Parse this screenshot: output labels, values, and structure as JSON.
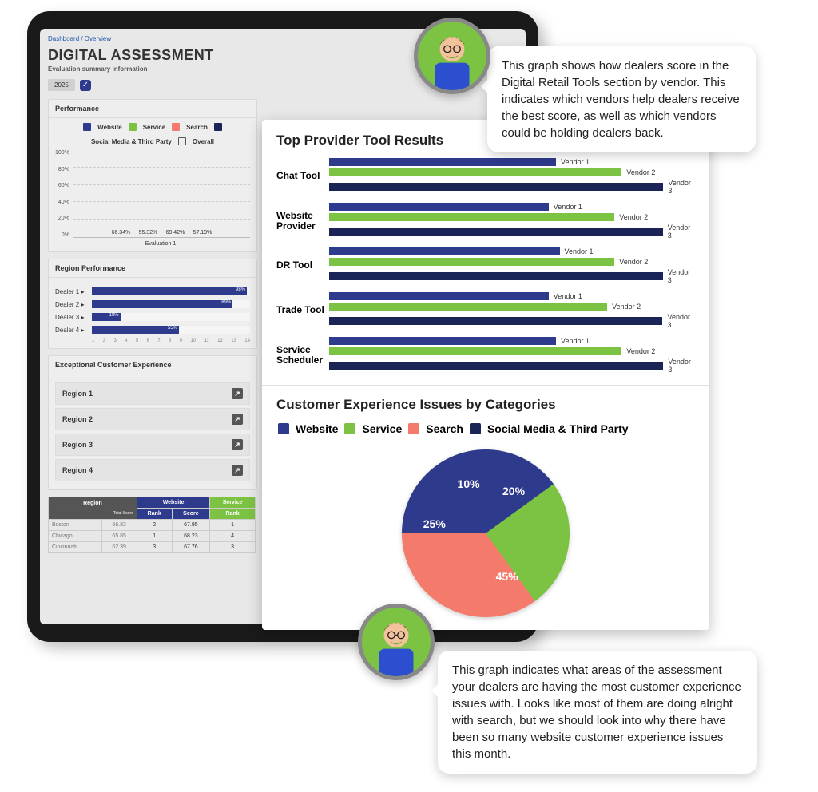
{
  "colors": {
    "blue": "#2e3a8c",
    "green": "#7cc243",
    "coral": "#f47b6b",
    "navy": "#1a2456",
    "grid": "#cccccc",
    "panel_bg": "#eeeeee",
    "screen_bg": "#e8e8e8",
    "text": "#333333"
  },
  "breadcrumb": "Dashboard / Overview",
  "page_title": "DIGITAL ASSESSMENT",
  "page_subtitle": "Evaluation summary information",
  "year": "2025",
  "legend_items": [
    {
      "label": "Website",
      "color": "#2e3a8c"
    },
    {
      "label": "Service",
      "color": "#7cc243"
    },
    {
      "label": "Search",
      "color": "#f47b6b"
    },
    {
      "label": "Social Media & Third Party",
      "color": "#1a2456"
    },
    {
      "label": "Overall",
      "color_outline": true
    }
  ],
  "performance": {
    "title": "Performance",
    "y_max": 100,
    "y_step": 20,
    "y_suffix": "%",
    "x_label": "Evaluation 1",
    "bars": [
      {
        "value": 66.34,
        "label": "66.34%",
        "color": "#2e3a8c"
      },
      {
        "value": 55.32,
        "label": "55.32%",
        "color": "#7cc243"
      },
      {
        "value": 69.42,
        "label": "69.42%",
        "color": "#f47b6b"
      },
      {
        "value": 57.19,
        "label": "57.19%",
        "color": "#1a2456"
      }
    ]
  },
  "region_performance": {
    "title": "Region Performance",
    "rows": [
      {
        "label": "Dealer 1 ▸",
        "value": 98
      },
      {
        "label": "Dealer 2 ▸",
        "value": 89
      },
      {
        "label": "Dealer 3 ▸",
        "value": 18
      },
      {
        "label": "Dealer 4 ▸",
        "value": 55
      }
    ],
    "ticks": [
      "1",
      "2",
      "3",
      "4",
      "5",
      "6",
      "7",
      "8",
      "9",
      "10",
      "11",
      "12",
      "13",
      "14"
    ]
  },
  "ece": {
    "title": "Exceptional Customer Experience",
    "rows": [
      "Region 1",
      "Region 2",
      "Region 3",
      "Region 4"
    ]
  },
  "table": {
    "headers": {
      "region": "Region",
      "total": "Total Score",
      "website": "Website",
      "service": "Service",
      "rank": "Rank",
      "score": "Score"
    },
    "rows": [
      {
        "city": "Boston",
        "total": "66.82",
        "w_rank": "2",
        "w_score": "67.95",
        "s_rank": "1"
      },
      {
        "city": "Chicago",
        "total": "65.85",
        "w_rank": "1",
        "w_score": "68.23",
        "s_rank": "4"
      },
      {
        "city": "Cincinnati",
        "total": "62.39",
        "w_rank": "3",
        "w_score": "67.76",
        "s_rank": "3"
      }
    ]
  },
  "provider_results": {
    "title": "Top Provider Tool Results",
    "vendor_labels": [
      "Vendor 1",
      "Vendor 2",
      "Vendor 3"
    ],
    "bar_colors": [
      "#2e3a8c",
      "#7cc243",
      "#1a2456"
    ],
    "max": 100,
    "tools": [
      {
        "label": "Chat Tool",
        "values": [
          62,
          80,
          98
        ]
      },
      {
        "label": "Website Provider",
        "values": [
          60,
          78,
          96
        ]
      },
      {
        "label": "DR Tool",
        "values": [
          63,
          78,
          96
        ]
      },
      {
        "label": "Trade Tool",
        "values": [
          60,
          76,
          95
        ]
      },
      {
        "label": "Service Scheduler",
        "values": [
          62,
          80,
          98
        ]
      }
    ]
  },
  "pie_chart": {
    "title": "Customer Experience Issues by Categories",
    "legend": [
      {
        "label": "Website",
        "color": "#2e3a8c"
      },
      {
        "label": "Service",
        "color": "#7cc243"
      },
      {
        "label": "Search",
        "color": "#f47b6b"
      },
      {
        "label": "Social Media & Third Party",
        "color": "#1a2456"
      }
    ],
    "slices": [
      {
        "label": "45%",
        "value": 45,
        "color": "#2e3a8c"
      },
      {
        "label": "25%",
        "value": 25,
        "color": "#7cc243"
      },
      {
        "label": "10%",
        "value": 10,
        "color": "#f47b6b"
      },
      {
        "label": "20%",
        "value": 20,
        "color": "#1a2456"
      }
    ]
  },
  "bubble_top": "This graph shows how dealers score in the Digital Retail Tools section by vendor. This indicates which vendors help dealers receive the best score, as well as which vendors could be holding dealers back.",
  "bubble_bot": "This graph indicates what areas of the assessment your dealers are having the most customer experience issues with. Looks like most of them are doing alright with search, but we should look into why there have been so many website customer experience issues this month."
}
